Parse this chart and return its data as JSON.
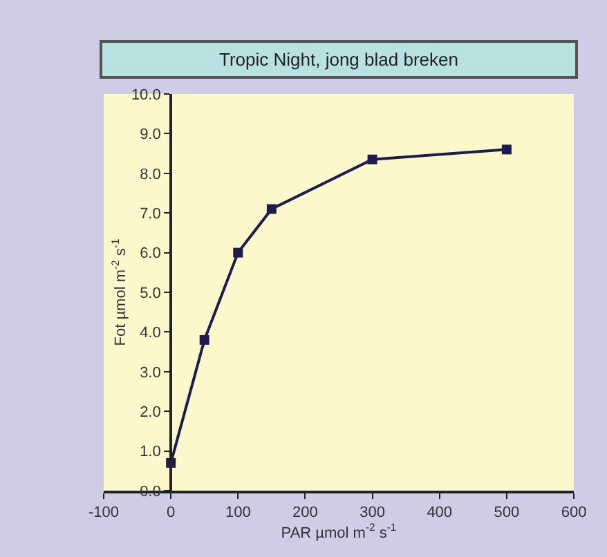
{
  "chart_data": {
    "type": "line",
    "title": "Tropic Night, jong blad breken",
    "xlabel": "PAR µmol m$^{-2}$ s$^{-1}$",
    "ylabel": "Fot µmol m$^{-2}$ s$^{-1}$",
    "x": [
      0,
      50,
      100,
      150,
      300,
      500
    ],
    "series": [
      {
        "color": "#1c1c4e",
        "values": [
          0.7,
          3.8,
          6.0,
          7.1,
          8.35,
          8.6
        ]
      }
    ],
    "xlim": [
      -100,
      600
    ],
    "xticks": [
      -100,
      0,
      100,
      200,
      300,
      400,
      500,
      600
    ],
    "ylim": [
      0,
      10
    ],
    "yticks": [
      {
        "value": 0,
        "label": "0.0"
      },
      {
        "value": 1,
        "label": "1.0"
      },
      {
        "value": 2,
        "label": "2.0"
      },
      {
        "value": 3,
        "label": "3.0"
      },
      {
        "value": 4,
        "label": "4.0"
      },
      {
        "value": 5,
        "label": "5.0"
      },
      {
        "value": 6,
        "label": "6.0"
      },
      {
        "value": 7,
        "label": "7.0"
      },
      {
        "value": 8,
        "label": "8.0"
      },
      {
        "value": 9,
        "label": "9.0"
      },
      {
        "value": 10,
        "label": "10.0"
      }
    ],
    "grid": false,
    "marker": "square",
    "line_style": "solid"
  }
}
